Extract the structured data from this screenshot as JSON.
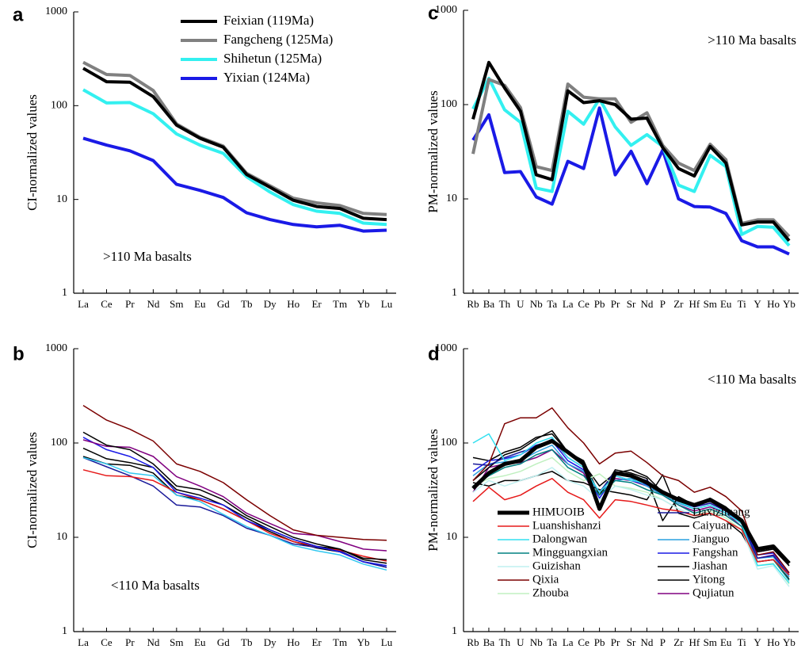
{
  "chart_data": [
    {
      "type": "line",
      "label": "a",
      "ylabel": "CI-normalized values",
      "annotation": ">110 Ma  basalts",
      "log_scale": true,
      "ylim": [
        1,
        1000
      ],
      "yticks": [
        1,
        10,
        100,
        1000
      ],
      "legend": "upper right",
      "categories": [
        "La",
        "Ce",
        "Pr",
        "Nd",
        "Sm",
        "Eu",
        "Gd",
        "Tb",
        "Dy",
        "Ho",
        "Er",
        "Tm",
        "Yb",
        "Lu"
      ],
      "series": [
        {
          "name": "Feixian (119Ma)",
          "color": "#000000",
          "values": [
            250,
            180,
            178,
            125,
            62,
            45,
            36,
            18.5,
            13.5,
            9.8,
            8.4,
            8.0,
            6.3,
            6.1
          ]
        },
        {
          "name": "Fangcheng (125Ma)",
          "color": "#808080",
          "values": [
            290,
            215,
            210,
            145,
            64,
            46,
            37,
            19,
            14,
            10.3,
            9.2,
            8.6,
            7.1,
            6.9
          ]
        },
        {
          "name": "Shihetun (125Ma)",
          "color": "#33f0f0",
          "values": [
            148,
            107,
            108,
            82,
            50,
            38,
            31,
            17.5,
            12,
            8.8,
            7.5,
            7.1,
            5.6,
            5.4
          ]
        },
        {
          "name": "Yixian (124Ma)",
          "color": "#1a1ae6",
          "values": [
            45,
            38,
            33,
            26,
            14.5,
            12.5,
            10.5,
            7.2,
            6.1,
            5.4,
            5.1,
            5.3,
            4.6,
            4.7
          ]
        }
      ]
    },
    {
      "type": "line",
      "label": "b",
      "ylabel": "CI-normalized values",
      "annotation": "<110 Ma basalts",
      "log_scale": true,
      "ylim": [
        1,
        1000
      ],
      "yticks": [
        1,
        10,
        100,
        1000
      ],
      "categories": [
        "La",
        "Ce",
        "Pr",
        "Nd",
        "Sm",
        "Eu",
        "Gd",
        "Tb",
        "Dy",
        "Ho",
        "Er",
        "Tm",
        "Yb",
        "Lu"
      ],
      "series": [
        {
          "color": "#7b0000",
          "values": [
            250,
            175,
            140,
            105,
            60,
            50,
            38,
            25,
            17,
            12,
            10.5,
            10,
            9.5,
            9.3
          ]
        },
        {
          "color": "#000000",
          "values": [
            130,
            95,
            85,
            60,
            35,
            32,
            25,
            17,
            13,
            10,
            8.5,
            7.5,
            6,
            5.8
          ]
        },
        {
          "color": "#800080",
          "values": [
            108,
            92,
            90,
            72,
            44,
            35,
            27,
            18,
            14,
            11,
            10.5,
            9,
            7.5,
            7.2
          ]
        },
        {
          "color": "#1a1ae6",
          "values": [
            115,
            85,
            72,
            55,
            30,
            26,
            22,
            15,
            12,
            9.5,
            8,
            7,
            5.5,
            5.0
          ]
        },
        {
          "color": "#000000",
          "values": [
            88,
            68,
            62,
            55,
            32,
            28,
            22,
            16,
            12,
            9.5,
            8,
            7.5,
            5.8,
            5.3
          ]
        },
        {
          "color": "#e61a1a",
          "values": [
            52,
            45,
            44,
            40,
            30,
            25,
            20,
            15,
            11,
            9,
            8,
            7.3,
            6.3,
            5.6
          ]
        },
        {
          "color": "#33c8f0",
          "values": [
            70,
            60,
            48,
            45,
            28,
            24,
            17.5,
            13,
            10.5,
            8.2,
            7.2,
            6.5,
            5.2,
            4.5
          ]
        },
        {
          "color": "#1a1a9a",
          "values": [
            70,
            56,
            45,
            35,
            22,
            21,
            17,
            12.5,
            10.5,
            8.5,
            7.8,
            7.2,
            5.5,
            4.8
          ]
        },
        {
          "color": "#000000",
          "values": [
            72,
            60,
            58,
            48,
            28,
            25,
            20,
            15,
            11.5,
            9,
            7.7,
            7,
            5.5,
            4.8
          ]
        }
      ]
    },
    {
      "type": "line",
      "label": "c",
      "ylabel": "PM-normalized values",
      "annotation": ">110 Ma basalts",
      "log_scale": true,
      "ylim": [
        1,
        1000
      ],
      "yticks": [
        1,
        10,
        100,
        1000
      ],
      "categories": [
        "Rb",
        "Ba",
        "Th",
        "U",
        "Nb",
        "Ta",
        "La",
        "Ce",
        "Pb",
        "Pr",
        "Sr",
        "Nd",
        "P",
        "Zr",
        "Hf",
        "Sm",
        "Eu",
        "Ti",
        "Y",
        "Ho",
        "Yb"
      ],
      "series": [
        {
          "color": "#000000",
          "values": [
            70,
            280,
            150,
            85,
            18,
            16,
            140,
            105,
            110,
            100,
            70,
            72,
            35,
            21,
            17.5,
            36,
            24,
            5.3,
            5.7,
            5.7,
            3.6
          ]
        },
        {
          "color": "#808080",
          "values": [
            30,
            185,
            160,
            93,
            22,
            20,
            165,
            120,
            115,
            115,
            65,
            82,
            37,
            24,
            20,
            38,
            26,
            5.5,
            6.0,
            6.0,
            4.0
          ]
        },
        {
          "color": "#33f0f0",
          "values": [
            90,
            190,
            88,
            65,
            13,
            12,
            85,
            62,
            115,
            58,
            37,
            48,
            36,
            14,
            12,
            29,
            22,
            4.2,
            5.1,
            5.0,
            3.2
          ]
        },
        {
          "color": "#1a1ae6",
          "values": [
            42,
            78,
            19,
            19.5,
            10.5,
            8.8,
            25,
            21,
            92,
            18,
            32,
            14.5,
            33,
            10,
            8.3,
            8.2,
            7,
            3.6,
            3.1,
            3.1,
            2.6
          ]
        }
      ]
    },
    {
      "type": "line",
      "label": "d",
      "ylabel": "PM-normalized values",
      "annotation": "<110 Ma basalts",
      "log_scale": true,
      "ylim": [
        1,
        1000
      ],
      "yticks": [
        1,
        10,
        100,
        1000
      ],
      "legend": "lower left",
      "categories": [
        "Rb",
        "Ba",
        "Th",
        "U",
        "Nb",
        "Ta",
        "La",
        "Ce",
        "Pb",
        "Pr",
        "Sr",
        "Nd",
        "P",
        "Zr",
        "Hf",
        "Sm",
        "Eu",
        "Ti",
        "Y",
        "Ho",
        "Yb"
      ],
      "series": [
        {
          "name": "HIMUOIB",
          "color": "#000000",
          "values": [
            33,
            48,
            60,
            65,
            90,
            105,
            80,
            60,
            20,
            48,
            45,
            38,
            30,
            25,
            22,
            25,
            20,
            15,
            7.5,
            8,
            5.3
          ]
        },
        {
          "name": "Luanshishanzi",
          "color": "#e61a1a",
          "values": [
            24,
            34,
            25,
            28,
            35,
            42,
            30,
            25,
            16,
            25,
            24,
            22,
            20,
            19,
            17,
            18,
            15,
            12,
            5.5,
            5.8,
            4.0
          ]
        },
        {
          "name": "Dalongwan",
          "color": "#33e0f0",
          "values": [
            100,
            125,
            65,
            75,
            100,
            115,
            70,
            55,
            30,
            45,
            40,
            38,
            30,
            24,
            20,
            22,
            18,
            14,
            5.0,
            5.2,
            3.3
          ]
        },
        {
          "name": "Mingguangxian",
          "color": "#008080",
          "values": [
            35,
            45,
            55,
            60,
            75,
            85,
            55,
            45,
            28,
            40,
            38,
            32,
            28,
            22,
            18,
            20,
            17,
            13,
            5.5,
            5.8,
            3.5
          ]
        },
        {
          "name": "Guizishan",
          "color": "#bff0f0",
          "values": [
            30,
            40,
            35,
            40,
            45,
            55,
            40,
            35,
            25,
            35,
            32,
            28,
            25,
            20,
            17,
            18,
            15,
            12,
            4.6,
            5.0,
            3.0
          ]
        },
        {
          "name": "Qixia",
          "color": "#7b0000",
          "values": [
            40,
            60,
            160,
            185,
            185,
            235,
            145,
            100,
            60,
            78,
            82,
            62,
            45,
            40,
            30,
            34,
            27,
            19,
            6.5,
            7.0,
            4.2
          ]
        },
        {
          "name": "Zhouba",
          "color": "#c0f0c0",
          "values": [
            35,
            42,
            45,
            50,
            60,
            70,
            50,
            40,
            47,
            35,
            33,
            30,
            25,
            20,
            17,
            19,
            16,
            12,
            5.0,
            5.3,
            3.2
          ]
        },
        {
          "name": "Daxizhuang",
          "color": "#1a1a9a",
          "values": [
            60,
            58,
            70,
            80,
            90,
            110,
            70,
            55,
            30,
            50,
            45,
            40,
            30,
            25,
            21,
            23,
            19,
            14,
            6,
            6.4,
            4
          ]
        },
        {
          "name": "Caiyuan",
          "color": "#000000",
          "values": [
            40,
            55,
            75,
            85,
            110,
            135,
            80,
            65,
            28,
            52,
            48,
            42,
            15,
            27,
            22,
            26,
            21,
            15,
            7,
            7.5,
            5
          ]
        },
        {
          "name": "Jianguo",
          "color": "#2aa0e0",
          "values": [
            45,
            60,
            63,
            65,
            80,
            95,
            60,
            50,
            30,
            40,
            42,
            35,
            28,
            23,
            20,
            22,
            18,
            14,
            6,
            6.2,
            3.8
          ]
        },
        {
          "name": "Fangshan",
          "color": "#1a1ae6",
          "values": [
            50,
            65,
            68,
            75,
            95,
            105,
            65,
            52,
            26,
            45,
            40,
            36,
            30,
            24,
            21,
            23,
            19,
            14,
            6.5,
            6.8,
            4.2
          ]
        },
        {
          "name": "Jiashan",
          "color": "#000000",
          "values": [
            70,
            65,
            80,
            90,
            115,
            125,
            80,
            60,
            35,
            48,
            52,
            44,
            30,
            26,
            22,
            24,
            20,
            15,
            7,
            7.5,
            5
          ]
        },
        {
          "name": "Yitong",
          "color": "#000000",
          "values": [
            38,
            35,
            40,
            40,
            45,
            50,
            40,
            38,
            32,
            30,
            28,
            25,
            46,
            18,
            16,
            18,
            15,
            11,
            5.5,
            5.8,
            3.6
          ]
        },
        {
          "name": "Qujiatun",
          "color": "#800080",
          "values": [
            30,
            55,
            60,
            62,
            70,
            85,
            60,
            48,
            22,
            42,
            40,
            35,
            28,
            22,
            19,
            21,
            18,
            13,
            6,
            6.5,
            4
          ]
        }
      ]
    }
  ]
}
